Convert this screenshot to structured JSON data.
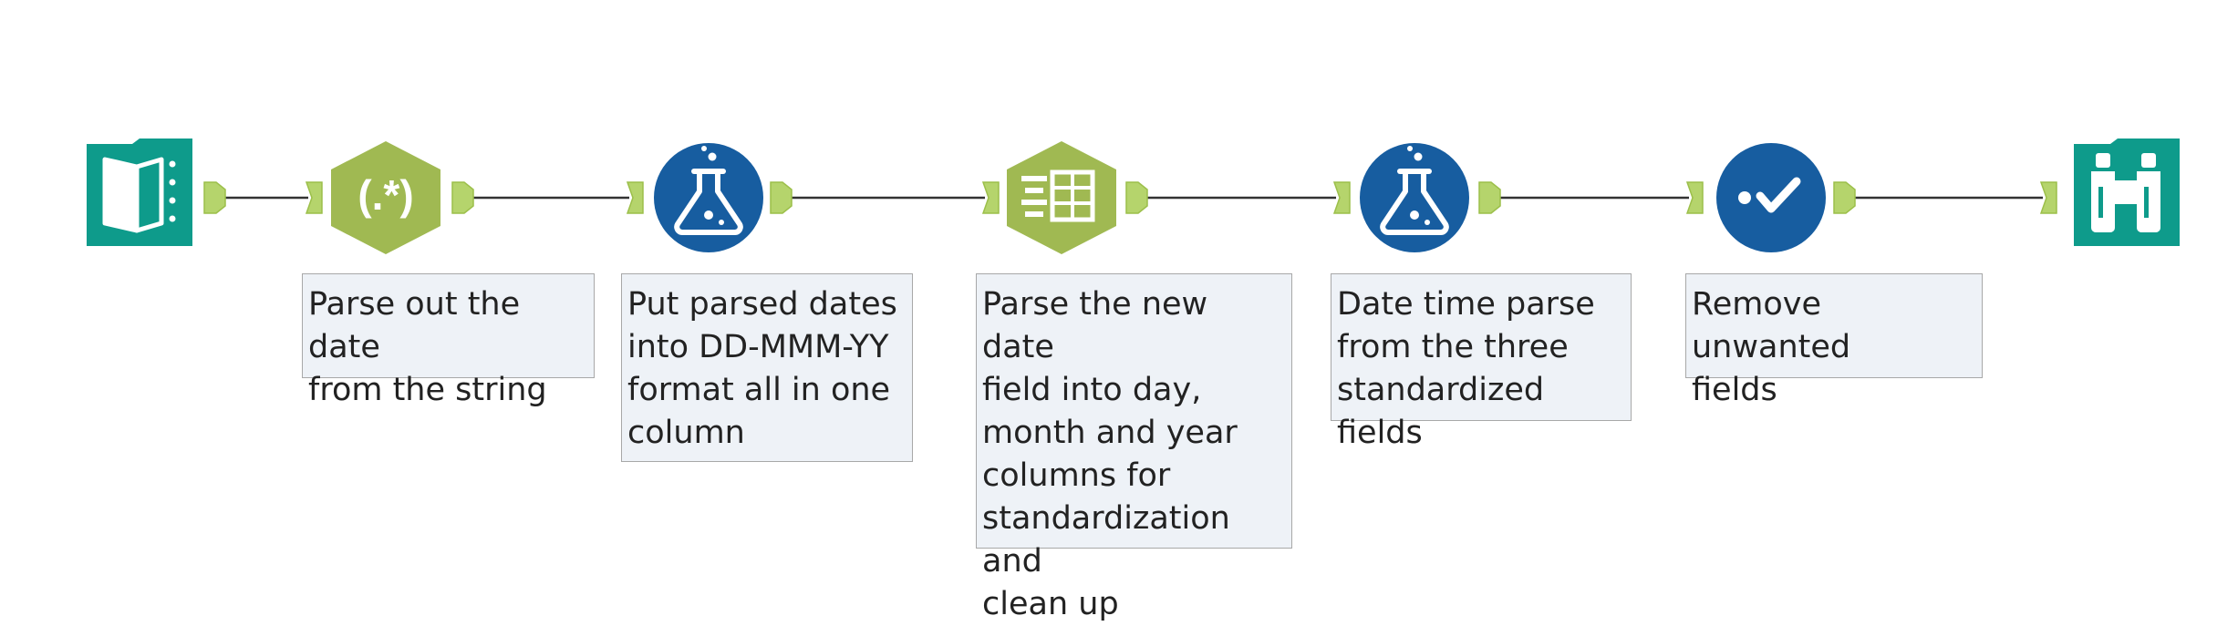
{
  "workflow": {
    "tools": [
      {
        "name": "input-data-tool",
        "icon": "book-icon",
        "color": "#0e9b8b"
      },
      {
        "name": "regex-tool",
        "icon": "regex-icon",
        "label": "(.*)",
        "color": "#a0b952"
      },
      {
        "name": "formula-tool-1",
        "icon": "flask-icon",
        "color": "#175da0"
      },
      {
        "name": "text-to-columns-tool",
        "icon": "columns-icon",
        "color": "#a0b952"
      },
      {
        "name": "formula-tool-2",
        "icon": "flask-icon",
        "color": "#175da0"
      },
      {
        "name": "select-tool",
        "icon": "checkmark-icon",
        "color": "#175da0"
      },
      {
        "name": "browse-tool",
        "icon": "binoculars-icon",
        "color": "#0e9b8b"
      }
    ],
    "annotations": [
      "Parse out the date\nfrom the string",
      "Put parsed dates\ninto DD-MMM-YY\nformat all in one\ncolumn",
      "Parse the new date\nfield into day,\nmonth and year\ncolumns for\nstandardization and\nclean up",
      "Date time parse\nfrom the three\nstandardized fields",
      "Remove unwanted\nfields"
    ],
    "colors": {
      "anchor": "#b5d46c",
      "connector": "#333333",
      "annotation_bg": "#eef2f7",
      "annotation_border": "#a8a8a8"
    }
  }
}
